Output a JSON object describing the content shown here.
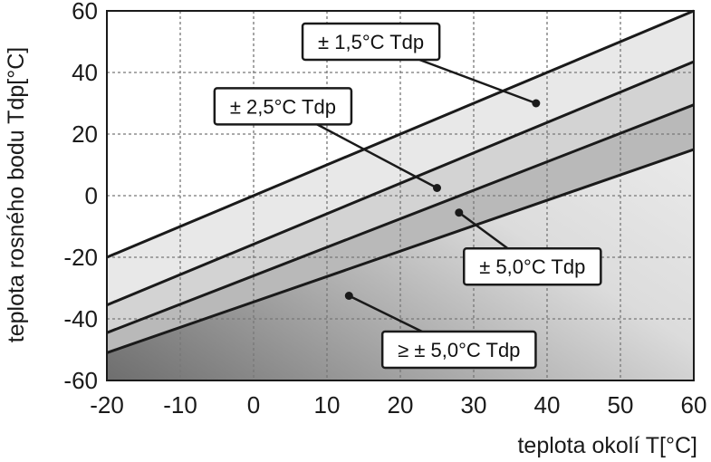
{
  "chart_data": {
    "type": "area",
    "xlabel": "teplota okolí  T[°C]",
    "ylabel": "teplota rosného bodu  Tdp[°C]",
    "xlim": [
      -20,
      60
    ],
    "ylim": [
      -60,
      60
    ],
    "xticks": [
      -20,
      -10,
      0,
      10,
      20,
      30,
      40,
      50,
      60
    ],
    "yticks": [
      -60,
      -40,
      -20,
      0,
      20,
      40,
      60
    ],
    "grid": true,
    "boundaries": [
      {
        "x": [
          -20,
          60
        ],
        "y": [
          -20,
          60
        ]
      },
      {
        "x": [
          -20,
          60
        ],
        "y": [
          -35.5,
          43.5
        ]
      },
      {
        "x": [
          -20,
          60
        ],
        "y": [
          -44.5,
          29.5
        ]
      },
      {
        "x": [
          -20,
          60
        ],
        "y": [
          -51,
          15
        ]
      }
    ],
    "regions": [
      {
        "label": "± 1,5°C Tdp",
        "point": [
          38.5,
          30
        ],
        "box_anchor": [
          16,
          50
        ]
      },
      {
        "label": "± 2,5°C Tdp",
        "point": [
          25,
          2.5
        ],
        "box_anchor": [
          4,
          29
        ]
      },
      {
        "label": "± 5,0°C Tdp",
        "point": [
          28,
          -5.5
        ],
        "box_anchor": [
          38,
          -23
        ]
      },
      {
        "label": "≥ ± 5,0°C Tdp",
        "point": [
          13,
          -32.5
        ],
        "box_anchor": [
          28,
          -50
        ]
      }
    ]
  }
}
